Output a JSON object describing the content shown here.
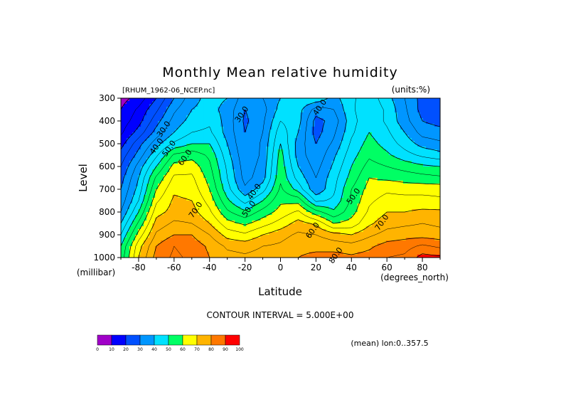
{
  "chart_data": {
    "type": "contour",
    "title": "Monthly Mean relative humidity",
    "dataset_label": "[RHUM_1962-06_NCEP.nc]",
    "units_label": "(units:%)",
    "xlabel": "Latitude",
    "ylabel": "Level",
    "x_units": "(degrees_north)",
    "y_units": "(millibar)",
    "xlim": [
      -90,
      90
    ],
    "ylim": [
      1000,
      300
    ],
    "y_inverted": true,
    "x_ticks": [
      -80,
      -60,
      -40,
      -20,
      0,
      20,
      40,
      60,
      80
    ],
    "y_ticks": [
      300,
      400,
      500,
      600,
      700,
      800,
      900,
      1000
    ],
    "contour_interval_text": "CONTOUR INTERVAL = 5.000E+00",
    "mean_text": "(mean) lon:0..357.5",
    "contour_labels": [
      {
        "text": "30.0",
        "x": -22,
        "y": 370
      },
      {
        "text": "40.0",
        "x": 22,
        "y": 340
      },
      {
        "text": "30.0",
        "x": -66,
        "y": 435
      },
      {
        "text": "40.0",
        "x": -70,
        "y": 510
      },
      {
        "text": "50.0",
        "x": -63,
        "y": 520
      },
      {
        "text": "60.0",
        "x": -54,
        "y": 560
      },
      {
        "text": "70.0",
        "x": -48,
        "y": 790
      },
      {
        "text": "40.0",
        "x": -15,
        "y": 710
      },
      {
        "text": "50.0",
        "x": -18,
        "y": 785
      },
      {
        "text": "60.0",
        "x": 18,
        "y": 880
      },
      {
        "text": "50.0",
        "x": 41,
        "y": 730
      },
      {
        "text": "70.0",
        "x": 57,
        "y": 845
      },
      {
        "text": "80.0",
        "x": 31,
        "y": 990
      }
    ],
    "colorbar": {
      "ticks": [
        "0",
        "10",
        "20",
        "30",
        "40",
        "50",
        "60",
        "70",
        "80",
        "90",
        "100"
      ],
      "colors": [
        "#a000c8",
        "#0000ff",
        "#0050ff",
        "#0096ff",
        "#00e1ff",
        "#00ff64",
        "#ffff00",
        "#ffb400",
        "#ff7800",
        "#ff0000"
      ]
    },
    "levels": [
      0,
      10,
      20,
      30,
      40,
      50,
      60,
      70,
      80,
      90,
      100
    ],
    "latitudes": [
      -90,
      -80,
      -70,
      -60,
      -50,
      -40,
      -30,
      -20,
      -10,
      0,
      10,
      20,
      30,
      40,
      50,
      60,
      70,
      80,
      90
    ],
    "pressure_levels": [
      300,
      350,
      400,
      450,
      500,
      550,
      600,
      650,
      700,
      750,
      800,
      850,
      900,
      950,
      1000
    ],
    "values": [
      [
        8,
        12,
        20,
        30,
        38,
        42,
        40,
        32,
        35,
        40,
        44,
        44,
        38,
        44,
        48,
        42,
        35,
        28,
        25
      ],
      [
        10,
        16,
        24,
        34,
        40,
        42,
        38,
        30,
        33,
        42,
        42,
        33,
        35,
        44,
        49,
        44,
        36,
        28,
        25
      ],
      [
        12,
        18,
        28,
        37,
        42,
        44,
        38,
        29,
        34,
        45,
        42,
        28,
        32,
        43,
        49,
        44,
        37,
        30,
        28
      ],
      [
        14,
        22,
        32,
        40,
        45,
        46,
        38,
        30,
        35,
        48,
        40,
        28,
        34,
        44,
        50,
        46,
        40,
        33,
        32
      ],
      [
        18,
        28,
        38,
        46,
        50,
        50,
        40,
        30,
        36,
        50,
        38,
        30,
        36,
        46,
        52,
        48,
        43,
        38,
        36
      ],
      [
        22,
        32,
        44,
        56,
        58,
        54,
        42,
        31,
        36,
        52,
        38,
        31,
        39,
        48,
        54,
        51,
        47,
        44,
        42
      ],
      [
        25,
        37,
        50,
        62,
        63,
        56,
        44,
        32,
        37,
        53,
        40,
        33,
        41,
        50,
        57,
        55,
        53,
        51,
        50
      ],
      [
        28,
        40,
        56,
        66,
        66,
        58,
        45,
        33,
        38,
        54,
        43,
        35,
        43,
        52,
        60,
        59,
        58,
        57,
        56
      ],
      [
        30,
        42,
        60,
        69,
        68,
        60,
        47,
        36,
        43,
        56,
        48,
        36,
        44,
        55,
        62,
        64,
        63,
        63,
        63
      ],
      [
        32,
        45,
        64,
        71,
        70,
        63,
        51,
        43,
        50,
        59,
        58,
        44,
        46,
        56,
        64,
        67,
        67,
        67,
        66
      ],
      [
        35,
        50,
        68,
        72,
        72,
        66,
        56,
        51,
        57,
        62,
        66,
        57,
        51,
        58,
        66,
        70,
        70,
        71,
        71
      ],
      [
        40,
        56,
        72,
        76,
        75,
        70,
        62,
        59,
        63,
        67,
        72,
        69,
        60,
        62,
        69,
        73,
        74,
        75,
        74
      ],
      [
        45,
        62,
        76,
        80,
        80,
        75,
        68,
        66,
        70,
        73,
        76,
        75,
        72,
        70,
        74,
        77,
        78,
        78,
        77
      ],
      [
        50,
        68,
        80,
        85,
        83,
        79,
        74,
        73,
        75,
        76,
        79,
        79,
        78,
        77,
        79,
        82,
        83,
        86,
        84
      ],
      [
        52,
        70,
        82,
        86,
        84,
        80,
        77,
        76,
        77,
        78,
        80,
        81,
        82,
        81,
        82,
        85,
        86,
        92,
        91
      ]
    ]
  }
}
